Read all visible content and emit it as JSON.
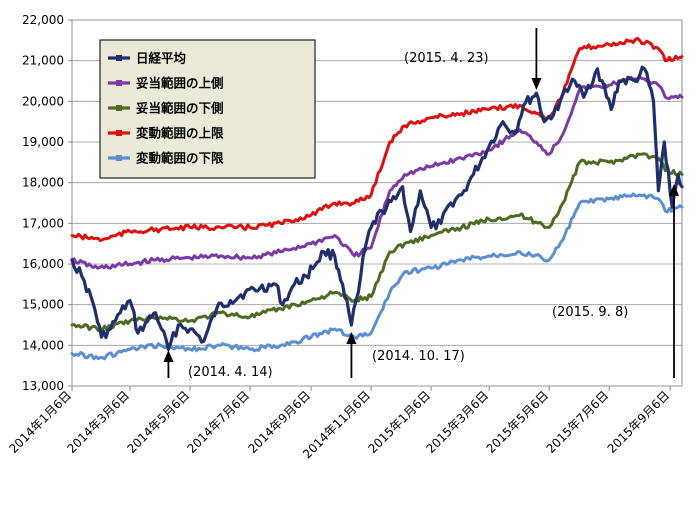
{
  "chart_data": {
    "type": "line",
    "title": "",
    "xlabel": "",
    "ylabel": "",
    "ylim": [
      13000,
      22000
    ],
    "y_ticks": [
      13000,
      14000,
      15000,
      16000,
      17000,
      18000,
      19000,
      20000,
      21000,
      22000
    ],
    "y_tick_labels": [
      "13,000",
      "14,000",
      "15,000",
      "16,000",
      "17,000",
      "18,000",
      "19,000",
      "20,000",
      "21,000",
      "22,000"
    ],
    "x_range": [
      "2014-01-06",
      "2015-09-18"
    ],
    "x_ticks": [
      "2014-01-06",
      "2014-03-06",
      "2014-05-06",
      "2014-07-06",
      "2014-09-06",
      "2014-11-06",
      "2015-01-06",
      "2015-03-06",
      "2015-05-06",
      "2015-07-06",
      "2015-09-06"
    ],
    "x_tick_labels": [
      "2014年1月6日",
      "2014年3月6日",
      "2014年5月6日",
      "2014年7月6日",
      "2014年9月6日",
      "2014年11月6日",
      "2015年1月6日",
      "2015年3月6日",
      "2015年5月6日",
      "2015年7月6日",
      "2015年9月6日"
    ],
    "grid": true,
    "legend_position": "top-left",
    "series": [
      {
        "name": "日経平均",
        "color": "#1f2f6e",
        "points": [
          [
            "2014-01-06",
            16100
          ],
          [
            "2014-01-16",
            15700
          ],
          [
            "2014-01-28",
            15000
          ],
          [
            "2014-02-05",
            14200
          ],
          [
            "2014-02-14",
            14400
          ],
          [
            "2014-02-24",
            14800
          ],
          [
            "2014-03-06",
            15100
          ],
          [
            "2014-03-14",
            14300
          ],
          [
            "2014-03-24",
            14600
          ],
          [
            "2014-04-01",
            14800
          ],
          [
            "2014-04-07",
            14400
          ],
          [
            "2014-04-14",
            13900
          ],
          [
            "2014-04-24",
            14500
          ],
          [
            "2014-05-06",
            14400
          ],
          [
            "2014-05-20",
            14100
          ],
          [
            "2014-06-02",
            14900
          ],
          [
            "2014-06-16",
            15100
          ],
          [
            "2014-07-01",
            15300
          ],
          [
            "2014-07-16",
            15400
          ],
          [
            "2014-08-01",
            15500
          ],
          [
            "2014-08-08",
            15000
          ],
          [
            "2014-08-20",
            15500
          ],
          [
            "2014-09-01",
            15700
          ],
          [
            "2014-09-19",
            16300
          ],
          [
            "2014-09-30",
            16200
          ],
          [
            "2014-10-08",
            15500
          ],
          [
            "2014-10-17",
            14500
          ],
          [
            "2014-10-24",
            15300
          ],
          [
            "2014-10-31",
            16400
          ],
          [
            "2014-11-06",
            16900
          ],
          [
            "2014-11-17",
            17300
          ],
          [
            "2014-12-01",
            17600
          ],
          [
            "2014-12-08",
            17900
          ],
          [
            "2014-12-16",
            16800
          ],
          [
            "2014-12-26",
            17800
          ],
          [
            "2015-01-06",
            16900
          ],
          [
            "2015-01-16",
            17000
          ],
          [
            "2015-01-26",
            17500
          ],
          [
            "2015-02-06",
            17700
          ],
          [
            "2015-02-18",
            18200
          ],
          [
            "2015-03-06",
            18900
          ],
          [
            "2015-03-20",
            19500
          ],
          [
            "2015-04-01",
            19200
          ],
          [
            "2015-04-10",
            19900
          ],
          [
            "2015-04-23",
            20200
          ],
          [
            "2015-05-01",
            19500
          ],
          [
            "2015-05-15",
            19800
          ],
          [
            "2015-05-22",
            20300
          ],
          [
            "2015-06-01",
            20500
          ],
          [
            "2015-06-10",
            20100
          ],
          [
            "2015-06-24",
            20800
          ],
          [
            "2015-07-08",
            19800
          ],
          [
            "2015-07-16",
            20500
          ],
          [
            "2015-08-01",
            20500
          ],
          [
            "2015-08-11",
            20800
          ],
          [
            "2015-08-20",
            20000
          ],
          [
            "2015-08-25",
            17800
          ],
          [
            "2015-08-31",
            19000
          ],
          [
            "2015-09-08",
            17400
          ],
          [
            "2015-09-14",
            18200
          ],
          [
            "2015-09-18",
            17900
          ]
        ]
      },
      {
        "name": "妥当範囲の上側",
        "color": "#7b3aa6",
        "points": [
          [
            "2014-01-06",
            16100
          ],
          [
            "2014-02-01",
            15900
          ],
          [
            "2014-03-06",
            16000
          ],
          [
            "2014-04-01",
            16100
          ],
          [
            "2014-05-06",
            16150
          ],
          [
            "2014-06-06",
            16200
          ],
          [
            "2014-07-06",
            16150
          ],
          [
            "2014-08-06",
            16300
          ],
          [
            "2014-09-06",
            16500
          ],
          [
            "2014-09-30",
            16700
          ],
          [
            "2014-10-20",
            16200
          ],
          [
            "2014-11-06",
            16400
          ],
          [
            "2014-11-25",
            17800
          ],
          [
            "2014-12-10",
            18200
          ],
          [
            "2015-01-06",
            18400
          ],
          [
            "2015-02-06",
            18600
          ],
          [
            "2015-03-06",
            18800
          ],
          [
            "2015-04-06",
            19300
          ],
          [
            "2015-04-23",
            19000
          ],
          [
            "2015-05-06",
            18700
          ],
          [
            "2015-05-20",
            19200
          ],
          [
            "2015-06-06",
            20300
          ],
          [
            "2015-07-06",
            20400
          ],
          [
            "2015-08-06",
            20600
          ],
          [
            "2015-08-25",
            20400
          ],
          [
            "2015-09-01",
            20100
          ],
          [
            "2015-09-18",
            20100
          ]
        ]
      },
      {
        "name": "妥当範囲の下側",
        "color": "#4f6b23",
        "points": [
          [
            "2014-01-06",
            14500
          ],
          [
            "2014-02-06",
            14400
          ],
          [
            "2014-03-06",
            14600
          ],
          [
            "2014-04-06",
            14700
          ],
          [
            "2014-05-06",
            14600
          ],
          [
            "2014-06-06",
            14800
          ],
          [
            "2014-07-06",
            14700
          ],
          [
            "2014-08-06",
            14900
          ],
          [
            "2014-09-06",
            15100
          ],
          [
            "2014-09-30",
            15300
          ],
          [
            "2014-10-20",
            15100
          ],
          [
            "2014-11-06",
            15200
          ],
          [
            "2014-11-25",
            16300
          ],
          [
            "2014-12-10",
            16500
          ],
          [
            "2015-01-06",
            16700
          ],
          [
            "2015-02-06",
            16900
          ],
          [
            "2015-03-06",
            17100
          ],
          [
            "2015-04-06",
            17200
          ],
          [
            "2015-05-06",
            16900
          ],
          [
            "2015-05-20",
            17500
          ],
          [
            "2015-06-06",
            18500
          ],
          [
            "2015-07-06",
            18500
          ],
          [
            "2015-08-06",
            18700
          ],
          [
            "2015-08-25",
            18600
          ],
          [
            "2015-09-01",
            18300
          ],
          [
            "2015-09-18",
            18200
          ]
        ]
      },
      {
        "name": "変動範囲の上限",
        "color": "#dd1111",
        "points": [
          [
            "2014-01-06",
            16700
          ],
          [
            "2014-02-06",
            16600
          ],
          [
            "2014-03-06",
            16800
          ],
          [
            "2014-04-06",
            16850
          ],
          [
            "2014-05-06",
            16900
          ],
          [
            "2014-06-06",
            16900
          ],
          [
            "2014-07-06",
            16900
          ],
          [
            "2014-08-06",
            17000
          ],
          [
            "2014-09-06",
            17200
          ],
          [
            "2014-09-30",
            17500
          ],
          [
            "2014-10-20",
            17500
          ],
          [
            "2014-11-06",
            17700
          ],
          [
            "2014-11-25",
            19000
          ],
          [
            "2014-12-10",
            19400
          ],
          [
            "2015-01-06",
            19600
          ],
          [
            "2015-02-06",
            19700
          ],
          [
            "2015-03-06",
            19800
          ],
          [
            "2015-04-06",
            19900
          ],
          [
            "2015-04-23",
            19700
          ],
          [
            "2015-05-06",
            19600
          ],
          [
            "2015-05-20",
            20200
          ],
          [
            "2015-06-06",
            21300
          ],
          [
            "2015-07-06",
            21400
          ],
          [
            "2015-08-06",
            21500
          ],
          [
            "2015-08-25",
            21300
          ],
          [
            "2015-09-01",
            21000
          ],
          [
            "2015-09-18",
            21100
          ]
        ]
      },
      {
        "name": "変動範囲の下限",
        "color": "#5b8fd0",
        "points": [
          [
            "2014-01-06",
            13800
          ],
          [
            "2014-02-06",
            13700
          ],
          [
            "2014-03-06",
            13900
          ],
          [
            "2014-04-06",
            14000
          ],
          [
            "2014-05-06",
            13900
          ],
          [
            "2014-06-06",
            14000
          ],
          [
            "2014-07-06",
            13900
          ],
          [
            "2014-08-06",
            14000
          ],
          [
            "2014-09-06",
            14200
          ],
          [
            "2014-09-30",
            14400
          ],
          [
            "2014-10-20",
            14200
          ],
          [
            "2014-11-06",
            14300
          ],
          [
            "2014-11-25",
            15300
          ],
          [
            "2014-12-10",
            15800
          ],
          [
            "2015-01-06",
            15900
          ],
          [
            "2015-02-06",
            16100
          ],
          [
            "2015-03-06",
            16200
          ],
          [
            "2015-04-06",
            16300
          ],
          [
            "2015-05-06",
            16100
          ],
          [
            "2015-05-20",
            16600
          ],
          [
            "2015-06-06",
            17500
          ],
          [
            "2015-07-06",
            17600
          ],
          [
            "2015-08-06",
            17700
          ],
          [
            "2015-08-25",
            17600
          ],
          [
            "2015-09-01",
            17300
          ],
          [
            "2015-09-18",
            17400
          ]
        ]
      }
    ],
    "annotations": [
      {
        "text": "(2014. 4. 14)",
        "x": "2014-04-14",
        "y": 13900,
        "arrow": "up"
      },
      {
        "text": "(2014. 10. 17)",
        "x": "2014-10-17",
        "y": 14500,
        "arrow": "up"
      },
      {
        "text": "(2015. 4. 23)",
        "x": "2015-04-23",
        "y": 20200,
        "arrow": "down"
      },
      {
        "text": "(2015. 9. 8)",
        "x": "2015-09-08",
        "y": 17400,
        "arrow": "up"
      }
    ]
  }
}
